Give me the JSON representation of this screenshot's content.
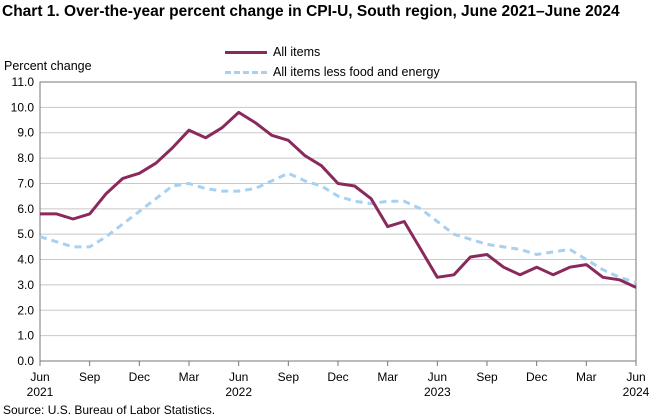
{
  "chart_data": {
    "type": "line",
    "title": "Chart 1. Over-the-year percent change in CPI-U, South region, June 2021–June 2024",
    "ylabel": "Percent change",
    "xlabel": "",
    "ylim": [
      0,
      11
    ],
    "yticks": [
      "0.0",
      "1.0",
      "2.0",
      "3.0",
      "4.0",
      "5.0",
      "6.0",
      "7.0",
      "8.0",
      "9.0",
      "10.0",
      "11.0"
    ],
    "xticks": [
      {
        "month": "Jun",
        "year": "2021"
      },
      {
        "month": "Sep",
        "year": ""
      },
      {
        "month": "Dec",
        "year": ""
      },
      {
        "month": "Mar",
        "year": ""
      },
      {
        "month": "Jun",
        "year": "2022"
      },
      {
        "month": "Sep",
        "year": ""
      },
      {
        "month": "Dec",
        "year": ""
      },
      {
        "month": "Mar",
        "year": ""
      },
      {
        "month": "Jun",
        "year": "2023"
      },
      {
        "month": "Sep",
        "year": ""
      },
      {
        "month": "Dec",
        "year": ""
      },
      {
        "month": "Mar",
        "year": ""
      },
      {
        "month": "Jun",
        "year": "2024"
      }
    ],
    "x": [
      "Jun 2021",
      "Jul 2021",
      "Aug 2021",
      "Sep 2021",
      "Oct 2021",
      "Nov 2021",
      "Dec 2021",
      "Jan 2022",
      "Feb 2022",
      "Mar 2022",
      "Apr 2022",
      "May 2022",
      "Jun 2022",
      "Jul 2022",
      "Aug 2022",
      "Sep 2022",
      "Oct 2022",
      "Nov 2022",
      "Dec 2022",
      "Jan 2023",
      "Feb 2023",
      "Mar 2023",
      "Apr 2023",
      "May 2023",
      "Jun 2023",
      "Jul 2023",
      "Aug 2023",
      "Sep 2023",
      "Oct 2023",
      "Nov 2023",
      "Dec 2023",
      "Jan 2024",
      "Feb 2024",
      "Mar 2024",
      "Apr 2024",
      "May 2024",
      "Jun 2024"
    ],
    "series": [
      {
        "name": "All items",
        "color": "#8a2a5c",
        "style": "solid",
        "values": [
          5.8,
          5.8,
          5.6,
          5.8,
          6.6,
          7.2,
          7.4,
          7.8,
          8.4,
          9.1,
          8.8,
          9.2,
          9.8,
          9.4,
          8.9,
          8.7,
          8.1,
          7.7,
          7.0,
          6.9,
          6.4,
          5.3,
          5.5,
          4.4,
          3.3,
          3.4,
          4.1,
          4.2,
          3.7,
          3.4,
          3.7,
          3.4,
          3.7,
          3.8,
          3.3,
          3.2,
          2.9
        ]
      },
      {
        "name": "All items less food and energy",
        "color": "#a8d0f0",
        "style": "dashed",
        "values": [
          4.9,
          4.7,
          4.5,
          4.5,
          4.9,
          5.4,
          5.9,
          6.4,
          6.9,
          7.0,
          6.8,
          6.7,
          6.7,
          6.8,
          7.1,
          7.4,
          7.1,
          6.9,
          6.5,
          6.3,
          6.2,
          6.3,
          6.3,
          6.0,
          5.5,
          5.0,
          4.8,
          4.6,
          4.5,
          4.4,
          4.2,
          4.3,
          4.4,
          4.0,
          3.6,
          3.3,
          3.1
        ]
      }
    ],
    "grid": true,
    "legend_position": "top-center"
  },
  "source": "Source: U.S. Bureau of Labor Statistics."
}
